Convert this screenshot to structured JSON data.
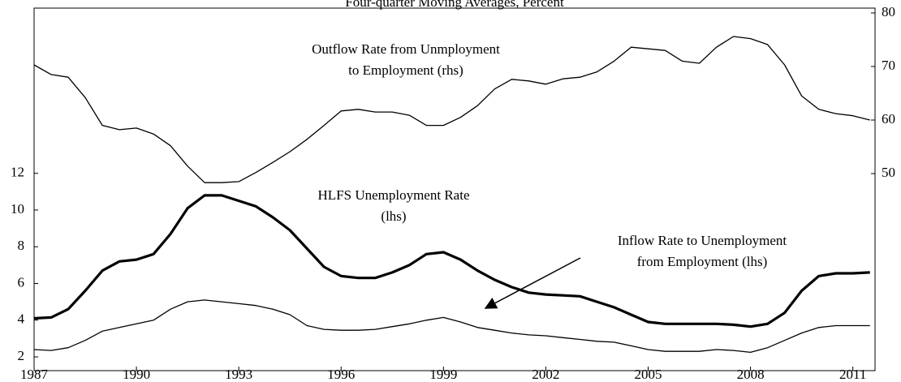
{
  "chart_data": {
    "type": "line",
    "title": "Four-quarter Moving Averages, Percent",
    "x": [
      1987,
      1987.5,
      1988,
      1988.5,
      1989,
      1989.5,
      1990,
      1990.5,
      1991,
      1991.5,
      1992,
      1992.5,
      1993,
      1993.5,
      1994,
      1994.5,
      1995,
      1995.5,
      1996,
      1996.5,
      1997,
      1997.5,
      1998,
      1998.5,
      1999,
      1999.5,
      2000,
      2000.5,
      2001,
      2001.5,
      2002,
      2002.5,
      2003,
      2003.5,
      2004,
      2004.5,
      2005,
      2005.5,
      2006,
      2006.5,
      2007,
      2007.5,
      2008,
      2008.5,
      2009,
      2009.5,
      2010,
      2010.5,
      2011,
      2011.5
    ],
    "xlim": [
      1987,
      2011.65
    ],
    "xticks": [
      1987,
      1990,
      1993,
      1996,
      1999,
      2002,
      2005,
      2008,
      2011
    ],
    "ylim": [
      1.25,
      21.0
    ],
    "yticks": [
      2,
      4,
      6,
      8,
      10,
      12
    ],
    "y2lim": [
      13.2,
      80.9
    ],
    "y2ticks": [
      50,
      60,
      70,
      80
    ],
    "series": [
      {
        "name": "HLFS Unemployment Rate (lhs)",
        "color": "#000000",
        "linewidth": 3.2,
        "values": [
          4.1,
          4.15,
          4.6,
          5.6,
          6.7,
          7.2,
          7.3,
          7.6,
          8.7,
          10.1,
          10.8,
          10.8,
          10.5,
          10.2,
          9.6,
          8.9,
          7.9,
          6.9,
          6.4,
          6.3,
          6.3,
          6.6,
          7.0,
          7.6,
          7.7,
          7.3,
          6.7,
          6.2,
          5.8,
          5.5,
          5.4,
          5.35,
          5.3,
          5.0,
          4.7,
          4.3,
          3.9,
          3.8,
          3.8,
          3.8,
          3.8,
          3.75,
          3.65,
          3.8,
          4.4,
          5.6,
          6.4,
          6.55,
          6.55,
          6.6
        ]
      },
      {
        "name": "Inflow Rate to Unemployment from Employment (lhs)",
        "color": "#000000",
        "linewidth": 1.3,
        "values": [
          2.4,
          2.35,
          2.5,
          2.9,
          3.4,
          3.6,
          3.8,
          4.0,
          4.6,
          5.0,
          5.1,
          5.0,
          4.9,
          4.8,
          4.6,
          4.3,
          3.7,
          3.5,
          3.45,
          3.45,
          3.5,
          3.65,
          3.8,
          4.0,
          4.15,
          3.9,
          3.6,
          3.45,
          3.3,
          3.2,
          3.15,
          3.05,
          2.95,
          2.85,
          2.8,
          2.6,
          2.4,
          2.3,
          2.3,
          2.3,
          2.4,
          2.35,
          2.25,
          2.5,
          2.9,
          3.3,
          3.6,
          3.7,
          3.7,
          3.7
        ]
      },
      {
        "name": "Outflow Rate from Unemployment to Employment (rhs)",
        "color": "#000000",
        "linewidth": 1.3,
        "axis": "y2",
        "values": [
          70.3,
          68.5,
          68,
          64.2,
          59,
          58.2,
          58.5,
          57.4,
          55.2,
          51.4,
          48.3,
          48.3,
          48.5,
          50.2,
          52.1,
          54.1,
          56.4,
          59,
          61.7,
          62,
          61.5,
          61.5,
          60.9,
          59,
          59,
          60.5,
          62.7,
          65.8,
          67.6,
          67.3,
          66.7,
          67.7,
          68,
          69,
          71,
          73.6,
          73.3,
          73,
          71,
          70.6,
          73.6,
          75.6,
          75.2,
          74.1,
          70.3,
          64.5,
          62,
          61.2,
          60.8,
          60
        ]
      }
    ],
    "annotations": [
      [
        "Outflow Rate from Unmployment",
        "to Employment (rhs)"
      ],
      [
        "HLFS Unemployment Rate",
        "(lhs)"
      ],
      [
        "Inflow Rate to Unemployment",
        "from Employment (lhs)"
      ]
    ]
  }
}
